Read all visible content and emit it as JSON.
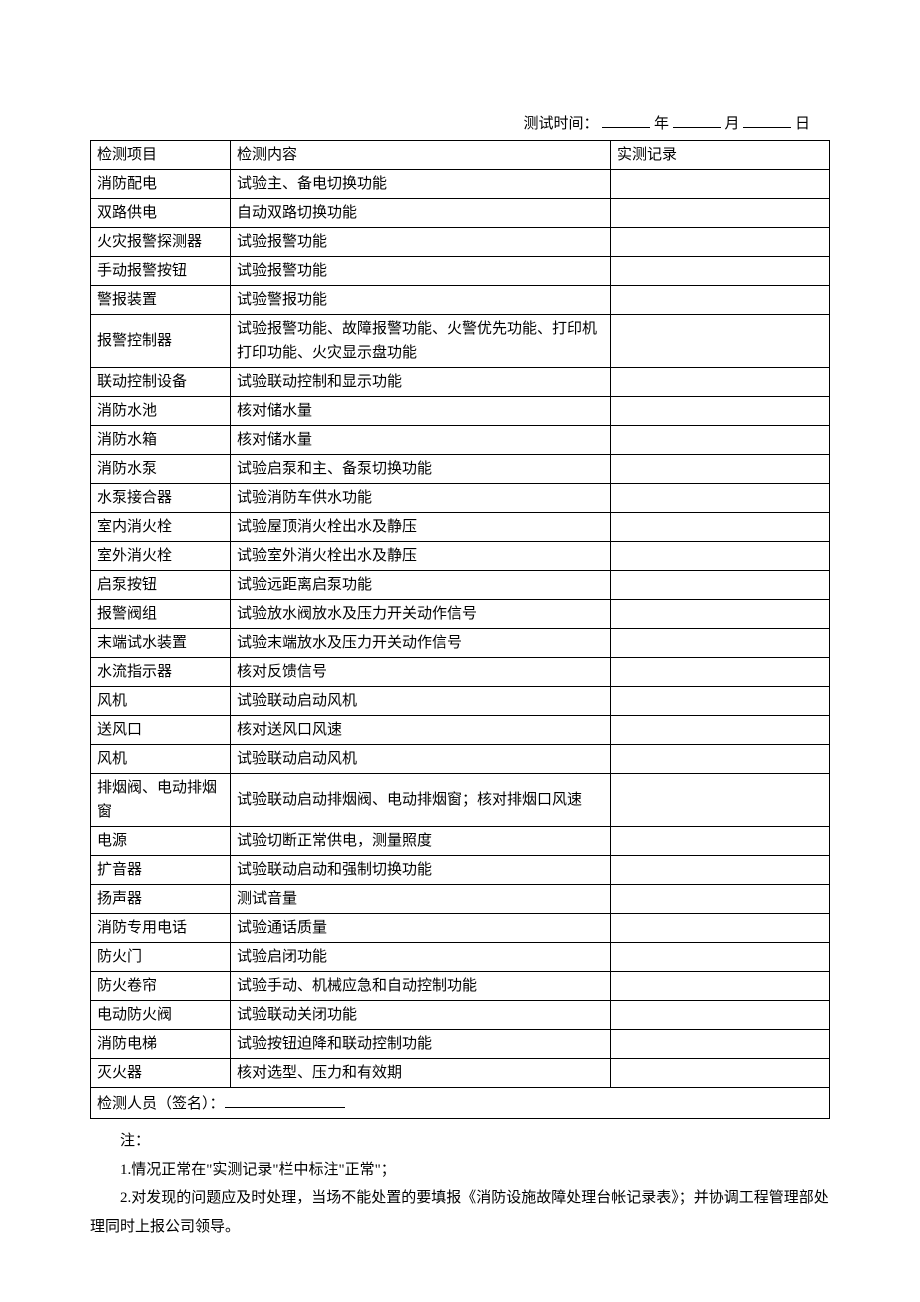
{
  "test_time": {
    "label": "测试时间：",
    "year_suffix": "年",
    "month_suffix": "月",
    "day_suffix": "日"
  },
  "headers": {
    "col1": "检测项目",
    "col2": "检测内容",
    "col3": "实测记录"
  },
  "rows": [
    {
      "item": "消防配电",
      "content": "试验主、备电切换功能"
    },
    {
      "item": "双路供电",
      "content": "自动双路切换功能"
    },
    {
      "item": "火灾报警探测器",
      "content": "试验报警功能"
    },
    {
      "item": "手动报警按钮",
      "content": "试验报警功能"
    },
    {
      "item": "警报装置",
      "content": "试验警报功能"
    },
    {
      "item": "报警控制器",
      "content": "试验报警功能、故障报警功能、火警优先功能、打印机打印功能、火灾显示盘功能"
    },
    {
      "item": "联动控制设备",
      "content": "试验联动控制和显示功能"
    },
    {
      "item": "消防水池",
      "content": "核对储水量"
    },
    {
      "item": "消防水箱",
      "content": "核对储水量"
    },
    {
      "item": "消防水泵",
      "content": "试验启泵和主、备泵切换功能"
    },
    {
      "item": "水泵接合器",
      "content": "试验消防车供水功能"
    },
    {
      "item": "室内消火栓",
      "content": "试验屋顶消火栓出水及静压"
    },
    {
      "item": "室外消火栓",
      "content": "试验室外消火栓出水及静压"
    },
    {
      "item": "启泵按钮",
      "content": "试验远距离启泵功能"
    },
    {
      "item": "报警阀组",
      "content": "试验放水阀放水及压力开关动作信号"
    },
    {
      "item": "末端试水装置",
      "content": "试验末端放水及压力开关动作信号"
    },
    {
      "item": "水流指示器",
      "content": "核对反馈信号"
    },
    {
      "item": "风机",
      "content": "试验联动启动风机"
    },
    {
      "item": "送风口",
      "content": "核对送风口风速"
    },
    {
      "item": "风机",
      "content": "试验联动启动风机"
    },
    {
      "item": "排烟阀、电动排烟窗",
      "content": "试验联动启动排烟阀、电动排烟窗；核对排烟口风速"
    },
    {
      "item": "电源",
      "content": "试验切断正常供电，测量照度"
    },
    {
      "item": "扩音器",
      "content": "试验联动启动和强制切换功能"
    },
    {
      "item": "扬声器",
      "content": "测试音量"
    },
    {
      "item": "消防专用电话",
      "content": "试验通话质量"
    },
    {
      "item": "防火门",
      "content": "试验启闭功能"
    },
    {
      "item": "防火卷帘",
      "content": "试验手动、机械应急和自动控制功能"
    },
    {
      "item": "电动防火阀",
      "content": "试验联动关闭功能"
    },
    {
      "item": "消防电梯",
      "content": "试验按钮迫降和联动控制功能"
    },
    {
      "item": "灭火器",
      "content": "核对选型、压力和有效期"
    }
  ],
  "footer_row": "检测人员（签名）：",
  "notes": {
    "title": "注：",
    "line1": "1.情况正常在\"实测记录\"栏中标注\"正常\"；",
    "line2": "2.对发现的问题应及时处理，当场不能处置的要填报《消防设施故障处理台帐记录表》；并协调工程管理部处理同时上报公司领导。"
  }
}
